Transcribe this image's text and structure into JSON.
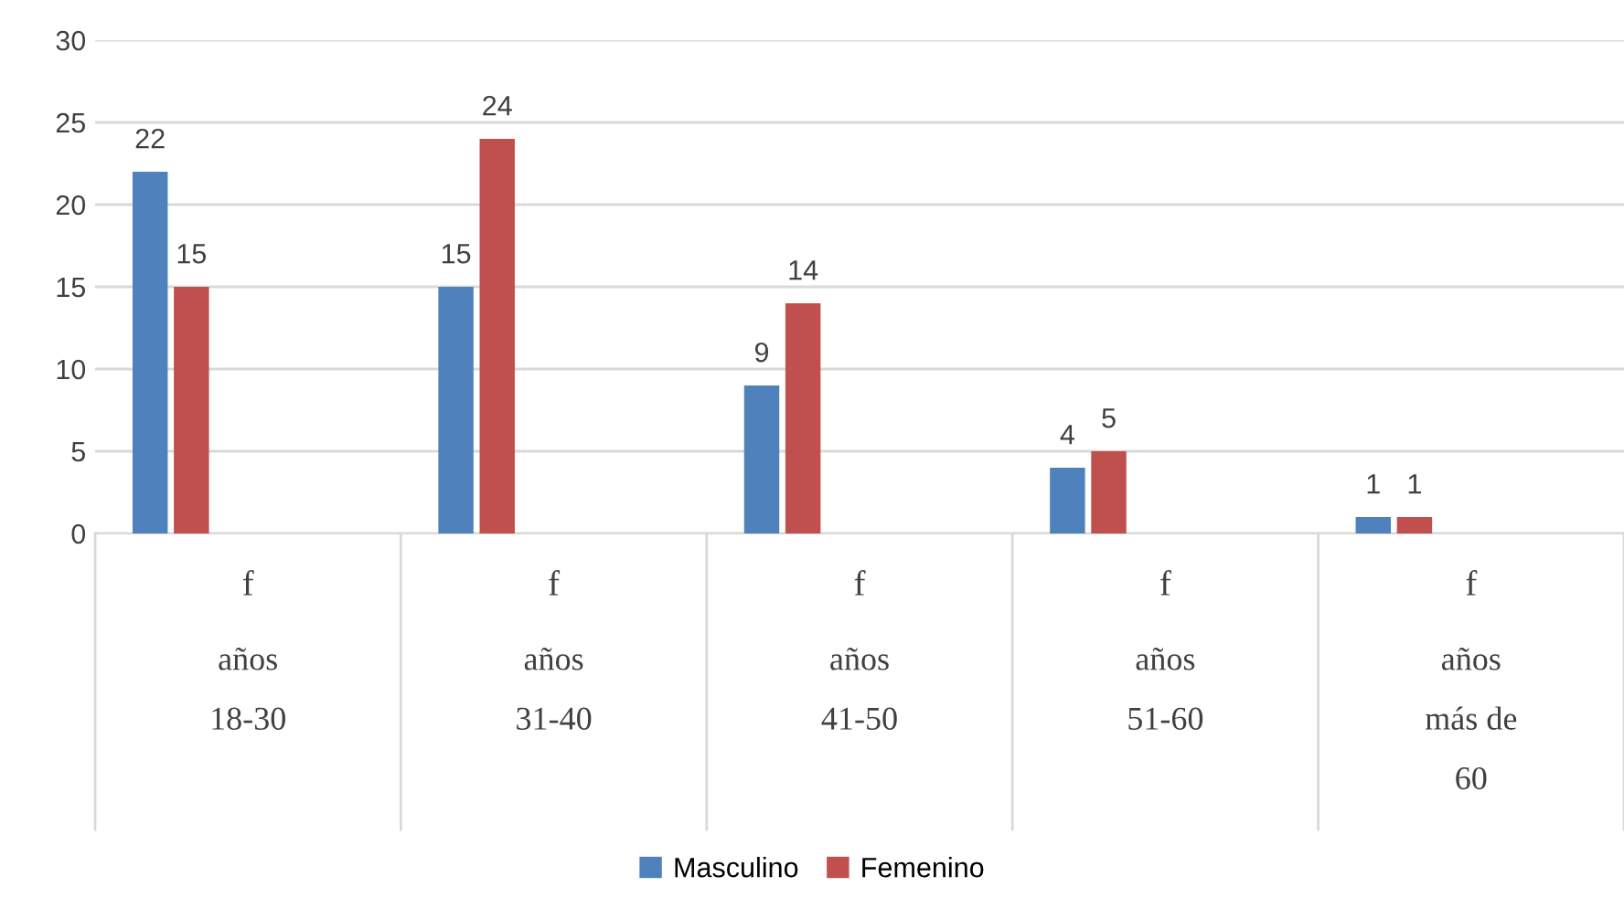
{
  "chart_data": {
    "type": "bar",
    "categories": [
      "f\naños\n18-30",
      "f\naños\n31-40",
      "f\naños\n41-50",
      "f\naños\n51-60",
      "f\naños\nmás de\n60"
    ],
    "series": [
      {
        "name": "Masculino",
        "color": "#4f81bd",
        "values": [
          22,
          15,
          9,
          4,
          1
        ]
      },
      {
        "name": "Femenino",
        "color": "#c0504d",
        "values": [
          15,
          24,
          14,
          5,
          1
        ]
      }
    ],
    "ylim": [
      0,
      30
    ],
    "yticks": [
      0,
      5,
      10,
      15,
      20,
      25,
      30
    ],
    "grid": "y",
    "legend": "bottom",
    "data_labels": true
  }
}
